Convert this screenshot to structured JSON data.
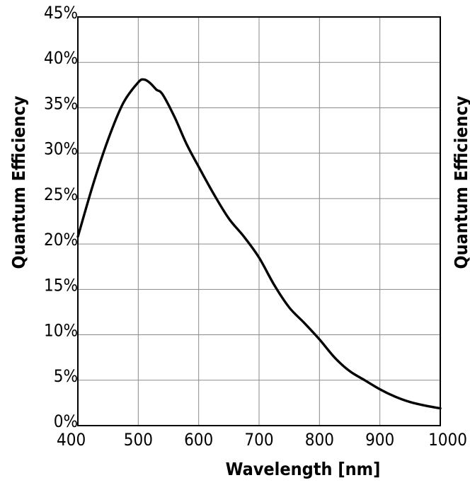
{
  "chart_data": {
    "type": "line",
    "xlabel": "Wavelength [nm]",
    "ylabel": "Quantum Efficiency",
    "xlim": [
      400,
      1000
    ],
    "ylim": [
      0,
      45
    ],
    "x_ticks": [
      400,
      500,
      600,
      700,
      800,
      900,
      1000
    ],
    "y_ticks": [
      0,
      5,
      10,
      15,
      20,
      25,
      30,
      35,
      40,
      45
    ],
    "x_tick_labels": [
      "400",
      "500",
      "600",
      "700",
      "800",
      "900",
      "1000"
    ],
    "y_tick_labels": [
      "0%",
      "5%",
      "10%",
      "15%",
      "20%",
      "25%",
      "30%",
      "35%",
      "40%",
      "45%"
    ],
    "grid": true,
    "series": [
      {
        "x": [
          400,
          425,
          450,
          475,
          500,
          510,
          520,
          530,
          540,
          560,
          580,
          600,
          625,
          650,
          675,
          700,
          725,
          750,
          775,
          800,
          825,
          850,
          875,
          900,
          925,
          950,
          975,
          1000
        ],
        "values": [
          20.8,
          26.5,
          31.5,
          35.5,
          37.8,
          38.1,
          37.7,
          37.0,
          36.5,
          34.0,
          31.0,
          28.5,
          25.5,
          22.8,
          20.8,
          18.5,
          15.5,
          13.0,
          11.3,
          9.5,
          7.5,
          6.0,
          5.0,
          4.0,
          3.2,
          2.6,
          2.2,
          1.9
        ]
      }
    ]
  },
  "right_panel": {
    "ylabel": "Quantum Efficiency"
  }
}
